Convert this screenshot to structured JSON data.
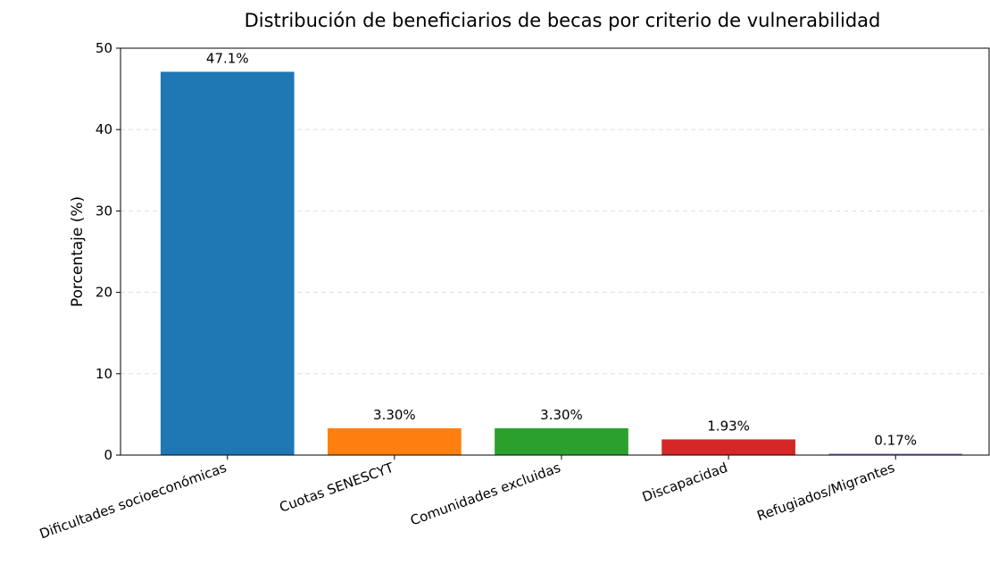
{
  "chart_data": {
    "type": "bar",
    "title": "Distribución de beneficiarios de becas por criterio de vulnerabilidad",
    "ylabel": "Porcentaje (%)",
    "categories": [
      "Dificultades socioeconómicas",
      "Cuotas SENESCYT",
      "Comunidades excluidas",
      "Discapacidad",
      "Refugiados/Migrantes"
    ],
    "values": [
      47.1,
      3.3,
      3.3,
      1.93,
      0.17
    ],
    "value_labels": [
      "47.1%",
      "3.30%",
      "3.30%",
      "1.93%",
      "0.17%"
    ],
    "colors": [
      "#1f77b4",
      "#ff7f0e",
      "#2ca02c",
      "#d62728",
      "#9467bd"
    ],
    "ylim": [
      0,
      50
    ],
    "yticks": [
      0,
      10,
      20,
      30,
      40,
      50
    ],
    "grid": true
  }
}
